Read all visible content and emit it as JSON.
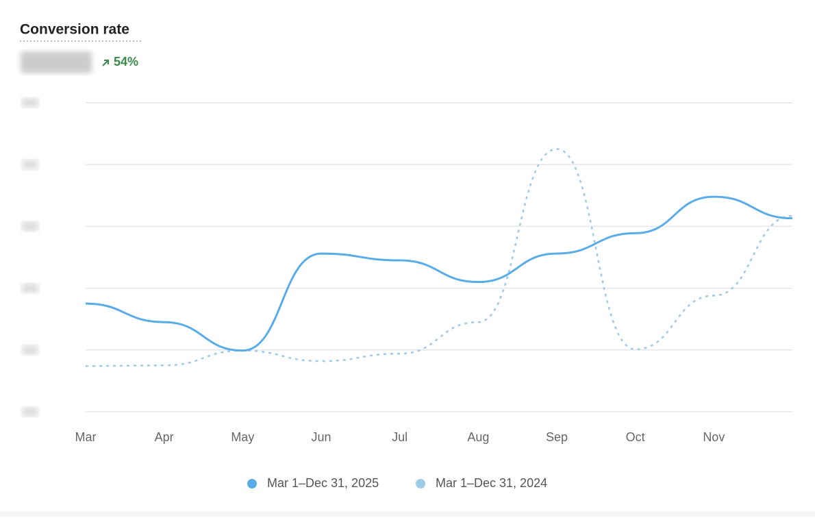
{
  "chart_data": {
    "type": "line",
    "title": "Conversion rate",
    "change": "54%",
    "categories": [
      "Mar",
      "Apr",
      "May",
      "Jun",
      "Jul",
      "Aug",
      "Sep",
      "Oct",
      "Nov",
      null
    ],
    "series": [
      {
        "name": "Mar 1–Dec 31, 2025",
        "color": "#5aace6",
        "dashed": false,
        "values": [
          1.75,
          1.45,
          0.99,
          2.56,
          2.45,
          2.1,
          2.56,
          2.89,
          3.48,
          3.13
        ]
      },
      {
        "name": "Mar 1–Dec 31, 2024",
        "color": "#9ccbea",
        "dashed": true,
        "values": [
          0.74,
          0.75,
          0.99,
          0.82,
          0.94,
          1.45,
          4.25,
          1.01,
          1.88,
          3.17
        ]
      }
    ],
    "ylim": [
      0,
      5
    ],
    "yticks": [
      0,
      1,
      2,
      3,
      4,
      5
    ],
    "grid": true
  }
}
